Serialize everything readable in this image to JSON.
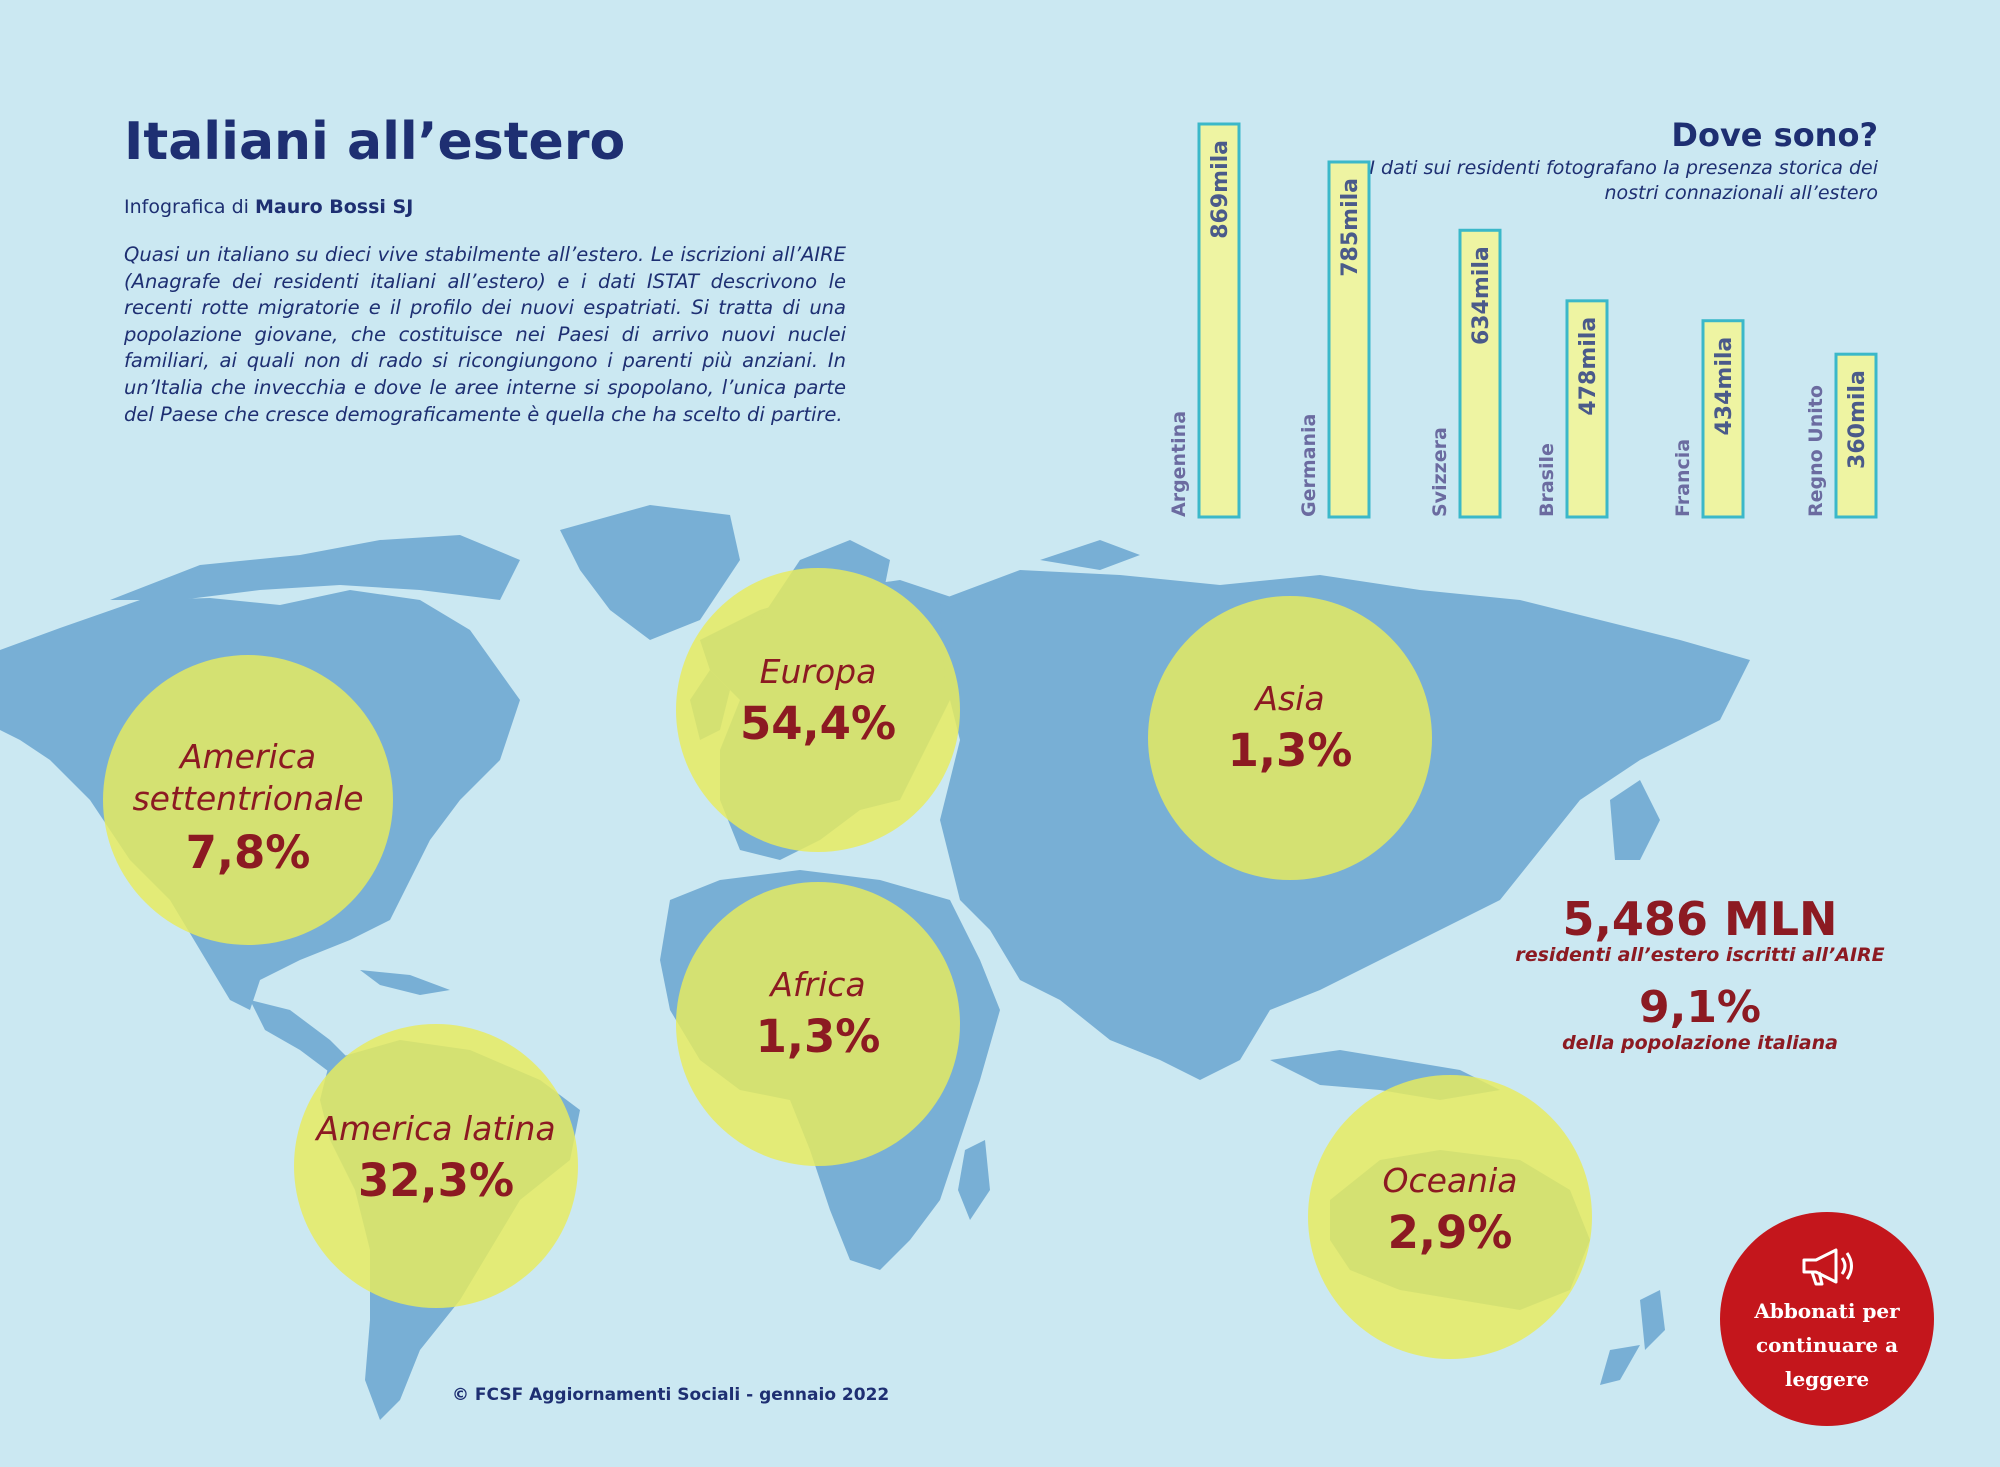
{
  "header": {
    "title": "Italiani all’estero",
    "byline_prefix": "Infografica di",
    "byline_author": "Mauro Bossi SJ",
    "intro": "Quasi un italiano su dieci vive stabilmente all’estero. Le iscrizioni all’AIRE (Anagrafe dei residenti italiani all’estero) e i dati ISTAT descrivono le recenti rotte migratorie e il profilo dei nuovi espatriati. Si tratta di una popolazione giovane, che costituisce nei Paesi di arrivo nuovi nuclei familiari, ai quali non di rado si ricongiungono i parenti più anziani. In un’Italia che invecchia e dove le aree interne si spopolano, l’unica parte del Paese che cresce demograficamente è quella che ha scelto di partire."
  },
  "dove": {
    "title": "Dove sono?",
    "subtitle": "I dati sui residenti fotografano la presenza storica dei nostri connazionali all’estero"
  },
  "chart_data": [
    {
      "type": "bar",
      "orientation": "vertical",
      "categories": [
        "Argentina",
        "Germania",
        "Svizzera",
        "Brasile",
        "Francia",
        "Regno Unito"
      ],
      "values": [
        869,
        785,
        634,
        478,
        434,
        360
      ],
      "value_labels": [
        "869mila",
        "785mila",
        "634mila",
        "478mila",
        "434mila",
        "360mila"
      ],
      "unit": "mila",
      "ylim": [
        0,
        869
      ],
      "grid": false,
      "legend": "none",
      "bar_color": "#eef4a2",
      "bar_border": "#3bb8c9"
    },
    {
      "type": "bubble-map",
      "regions": [
        "America settentrionale",
        "Europa",
        "Asia",
        "Africa",
        "America latina",
        "Oceania"
      ],
      "values": [
        7.8,
        54.4,
        1.3,
        1.3,
        32.3,
        2.9
      ],
      "value_labels": [
        "7,8%",
        "54,4%",
        "1,3%",
        "1,3%",
        "32,3%",
        "2,9%"
      ],
      "unit": "%",
      "circle_color": "#ecec74",
      "map_color": "#78afd5"
    }
  ],
  "totals": {
    "residents_value": "5,486 MLN",
    "residents_caption": "residenti all’estero iscritti all’AIRE",
    "share_value": "9,1%",
    "share_caption": "della popolazione italiana"
  },
  "footer": {
    "copyright": "© FCSF  Aggiornamenti Sociali - gennaio 2022"
  },
  "subscribe": {
    "label_line1": "Abbonati per",
    "label_line2": "continuare a",
    "label_line3": "leggere",
    "icon": "megaphone-icon"
  },
  "colors": {
    "background": "#cbe8f2",
    "title": "#1e2f72",
    "accent": "#8c1a22",
    "subscribe": "#c4161c"
  }
}
